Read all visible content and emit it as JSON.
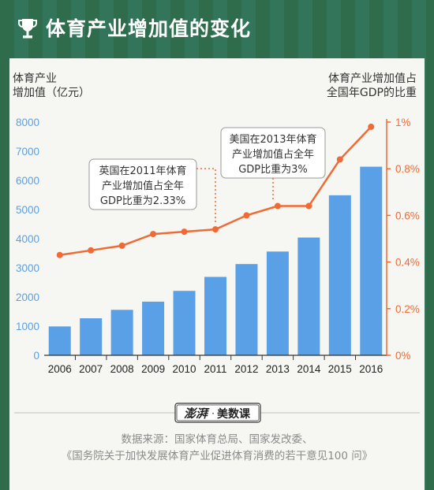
{
  "header": {
    "title": "体育产业增加值的变化"
  },
  "chart_data": {
    "type": "bar",
    "categories": [
      "2006",
      "2007",
      "2008",
      "2009",
      "2010",
      "2011",
      "2012",
      "2013",
      "2014",
      "2015",
      "2016"
    ],
    "series": [
      {
        "type": "bar",
        "axis": "left",
        "values": [
          990,
          1270,
          1560,
          1840,
          2210,
          2690,
          3130,
          3560,
          4040,
          5490,
          6470
        ],
        "color": "#5aa0e6"
      },
      {
        "type": "line",
        "axis": "right",
        "values": [
          0.43,
          0.45,
          0.47,
          0.52,
          0.53,
          0.54,
          0.6,
          0.64,
          0.64,
          0.84,
          0.98
        ],
        "color": "#f06a35"
      }
    ],
    "ylabel_left": [
      "体育产业",
      "增加值（亿元）"
    ],
    "ylabel_right": [
      "体育产业增加值占",
      "全国年GDP的比重"
    ],
    "ylim_left": [
      0,
      8000
    ],
    "yticks_left": [
      "0",
      "1000",
      "2000",
      "3000",
      "4000",
      "5000",
      "6000",
      "7000",
      "8000"
    ],
    "ylim_right": [
      0,
      1.0
    ],
    "yticks_right": [
      "0%",
      "0.2%",
      "0.4%",
      "0.6%",
      "0.8%",
      "1%"
    ],
    "annotations": [
      {
        "lines": [
          "英国在2011年体育",
          "产业增加值占全年",
          "GDP比重为2.33%"
        ],
        "target_category": "2011"
      },
      {
        "lines": [
          "美国在2013年体育",
          "产业增加值占全年",
          "GDP比重为3%"
        ],
        "target_category": "2013"
      }
    ]
  },
  "branding": {
    "logo": "澎湃",
    "name": "美数课"
  },
  "source": {
    "line1": "数据来源：国家体育总局、国家发改委、",
    "line2": "《国务院关于加快发展体育产业促进体育消费的若干意见100 问》"
  },
  "colors": {
    "bar": "#5aa0e6",
    "line": "#f06a35",
    "left_axis_text": "#5aa0e6",
    "right_axis_text": "#f06a35",
    "frame": "#2f6f4e"
  }
}
